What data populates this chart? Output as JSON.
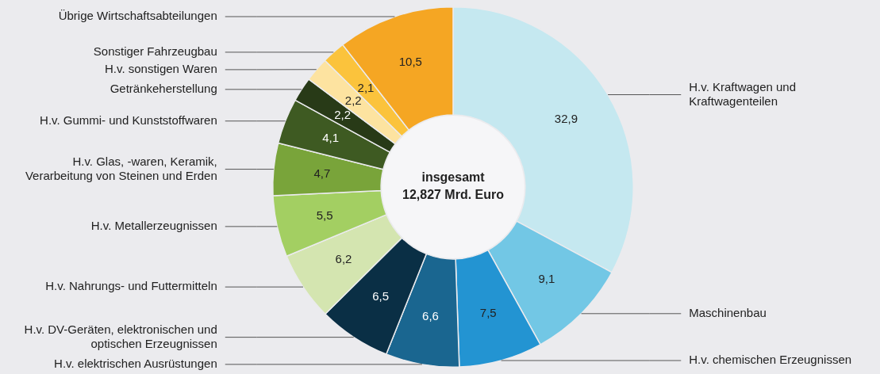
{
  "chart_data": {
    "type": "donut",
    "categories": [
      "H.v. Kraftwagen und Kraftwagenteilen",
      "Maschinenbau",
      "H.v. chemischen Erzeugnissen",
      "H.v. elektrischen Ausrüstungen",
      "H.v. DV-Geräten, elektronischen und optischen Erzeugnissen",
      "H.v. Nahrungs- und Futtermitteln",
      "H.v. Metallerzeugnissen",
      "H.v. Glas, -waren, Keramik, Verarbeitung von Steinen und Erden",
      "H.v. Gummi- und Kunststoffwaren",
      "Getränkeherstellung",
      "H.v. sonstigen Waren",
      "Sonstiger Fahrzeugbau",
      "Übrige Wirtschaftsabteilungen"
    ],
    "values": [
      32.9,
      9.1,
      7.5,
      6.6,
      6.5,
      6.2,
      5.5,
      4.7,
      4.1,
      2.2,
      2.2,
      2.1,
      10.5
    ],
    "colors": [
      "#c5e8f0",
      "#72c7e5",
      "#2394d2",
      "#1a6690",
      "#0a2f45",
      "#d4e5b0",
      "#a3cf62",
      "#79a43a",
      "#3e5a22",
      "#283a17",
      "#fde3a0",
      "#fbc33c",
      "#f5a623"
    ],
    "value_labels": [
      "32,9",
      "9,1",
      "7,5",
      "6,6",
      "6,5",
      "6,2",
      "5,5",
      "4,7",
      "4,1",
      "2,2",
      "2,2",
      "2,1",
      "10,5"
    ],
    "legend": false,
    "annotations": [
      "insgesamt",
      "12,827 Mrd. Euro"
    ]
  }
}
